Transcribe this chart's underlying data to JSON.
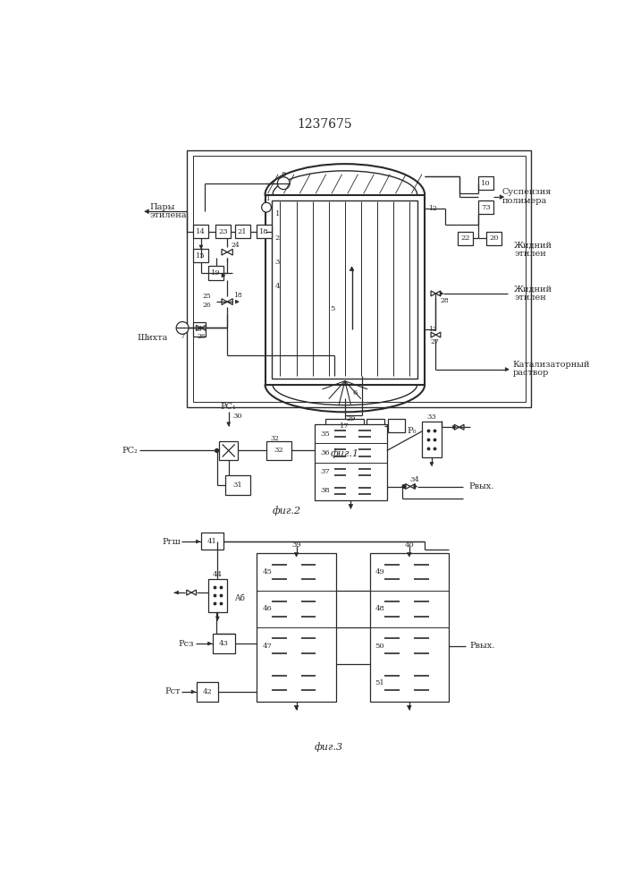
{
  "title": "1237675",
  "bg_color": "#ffffff",
  "line_color": "#2a2a2a",
  "fig1_label": "фиг.1",
  "fig2_label": "фиг.2",
  "fig3_label": "фиг.3",
  "text_susp1": "Суспензия",
  "text_susp2": "полимера",
  "text_pary1": "Пары",
  "text_pary2": "этилена",
  "text_shikh": "Шихта",
  "text_zhidn1": "Жидний",
  "text_zhidn2": "этилен",
  "text_katal1": "Катализаторный",
  "text_katal2": "раствор",
  "text_pc1": "PС₁",
  "text_pc2": "PС₂",
  "text_p0": "P₀",
  "text_pvyx": "Pвых.",
  "text_pgsh": "Pгш",
  "text_pcz": "Pсз",
  "text_pct": "Pст",
  "text_pb_vyx": "Pвых."
}
